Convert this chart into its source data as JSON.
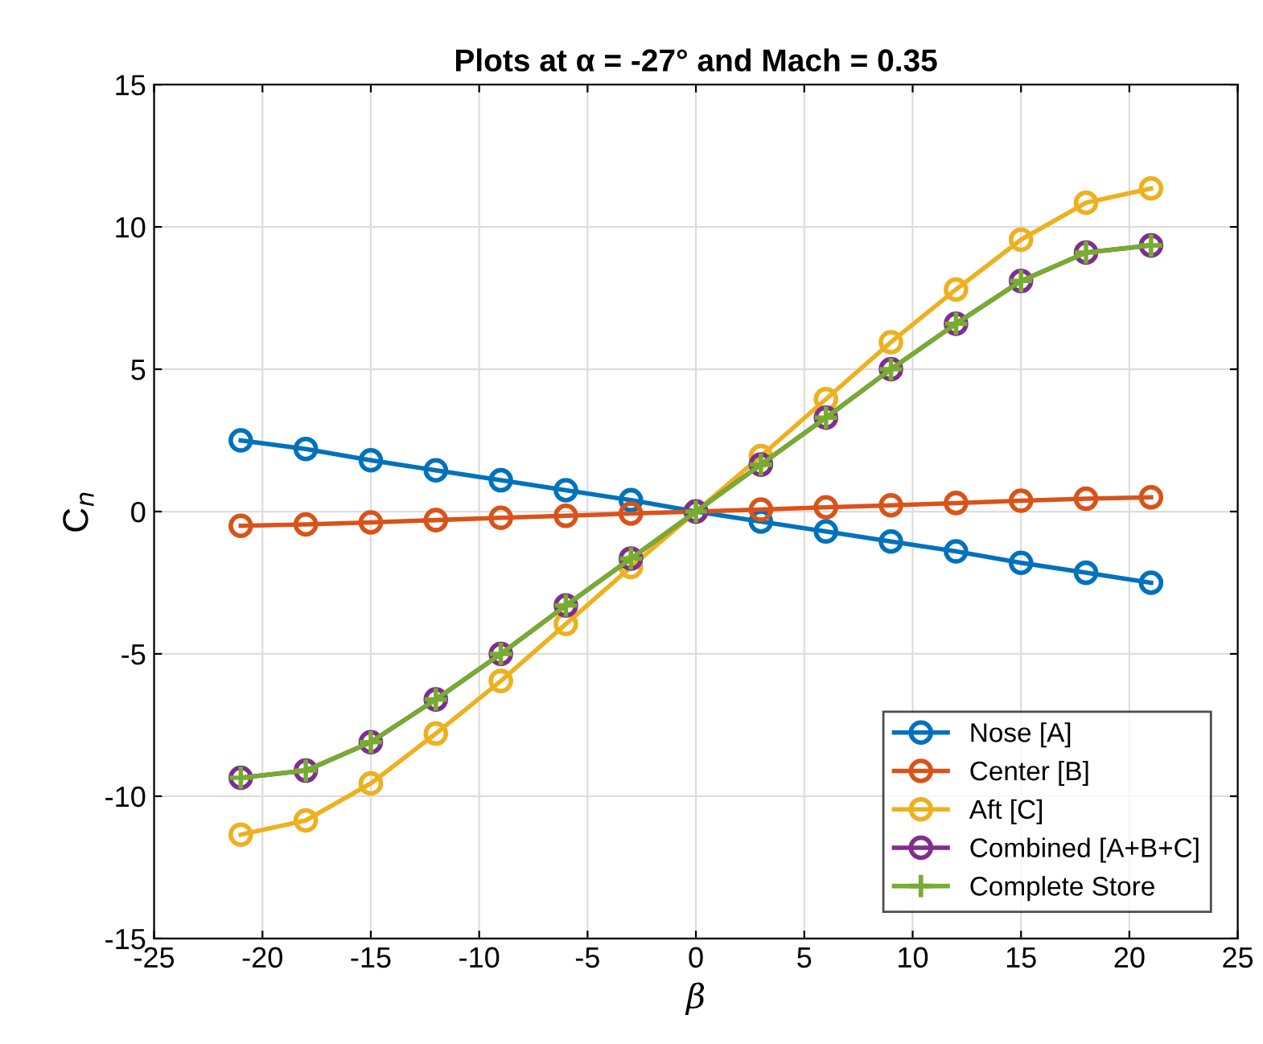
{
  "chart_data": {
    "type": "line",
    "title": "Plots at α = -27° and Mach = 0.35",
    "xlabel": "β",
    "ylabel": "C$_{n}$",
    "x": [
      -21,
      -18,
      -15,
      -12,
      -9,
      -6,
      -3,
      0,
      3,
      6,
      9,
      12,
      15,
      18,
      21
    ],
    "series": [
      {
        "name": "Nose [A]",
        "color": "#0072bd",
        "marker": "circle",
        "values": [
          2.5,
          2.2,
          1.8,
          1.45,
          1.1,
          0.75,
          0.4,
          0,
          -0.35,
          -0.7,
          -1.05,
          -1.4,
          -1.8,
          -2.15,
          -2.5
        ]
      },
      {
        "name": "Center [B]",
        "color": "#d95319",
        "marker": "circle",
        "values": [
          -0.5,
          -0.45,
          -0.38,
          -0.3,
          -0.22,
          -0.15,
          -0.07,
          0,
          0.07,
          0.15,
          0.22,
          0.3,
          0.38,
          0.45,
          0.5
        ]
      },
      {
        "name": "Aft [C]",
        "color": "#edb120",
        "marker": "circle",
        "values": [
          -11.35,
          -10.85,
          -9.55,
          -7.8,
          -5.95,
          -3.95,
          -1.95,
          0,
          1.95,
          3.95,
          5.95,
          7.8,
          9.55,
          10.85,
          11.35
        ]
      },
      {
        "name": "Combined [A+B+C]",
        "color": "#7e2f8e",
        "marker": "circle",
        "values": [
          -9.35,
          -9.1,
          -8.1,
          -6.6,
          -5.0,
          -3.3,
          -1.65,
          0,
          1.65,
          3.3,
          5.0,
          6.6,
          8.1,
          9.1,
          9.35
        ]
      },
      {
        "name": "Complete Store",
        "color": "#77ac30",
        "marker": "cross",
        "values": [
          -9.35,
          -9.1,
          -8.1,
          -6.6,
          -5.0,
          -3.3,
          -1.65,
          0,
          1.65,
          3.3,
          5.0,
          6.6,
          8.1,
          9.1,
          9.35
        ]
      }
    ],
    "xlim": [
      -25,
      25
    ],
    "xticks": [
      -25,
      -20,
      -15,
      -10,
      -5,
      0,
      5,
      10,
      15,
      20,
      25
    ],
    "ylim": [
      -15,
      15
    ],
    "yticks": [
      -15,
      -10,
      -5,
      0,
      5,
      10,
      15
    ],
    "grid": true,
    "legend": "bottom right",
    "line_style": "solid"
  }
}
